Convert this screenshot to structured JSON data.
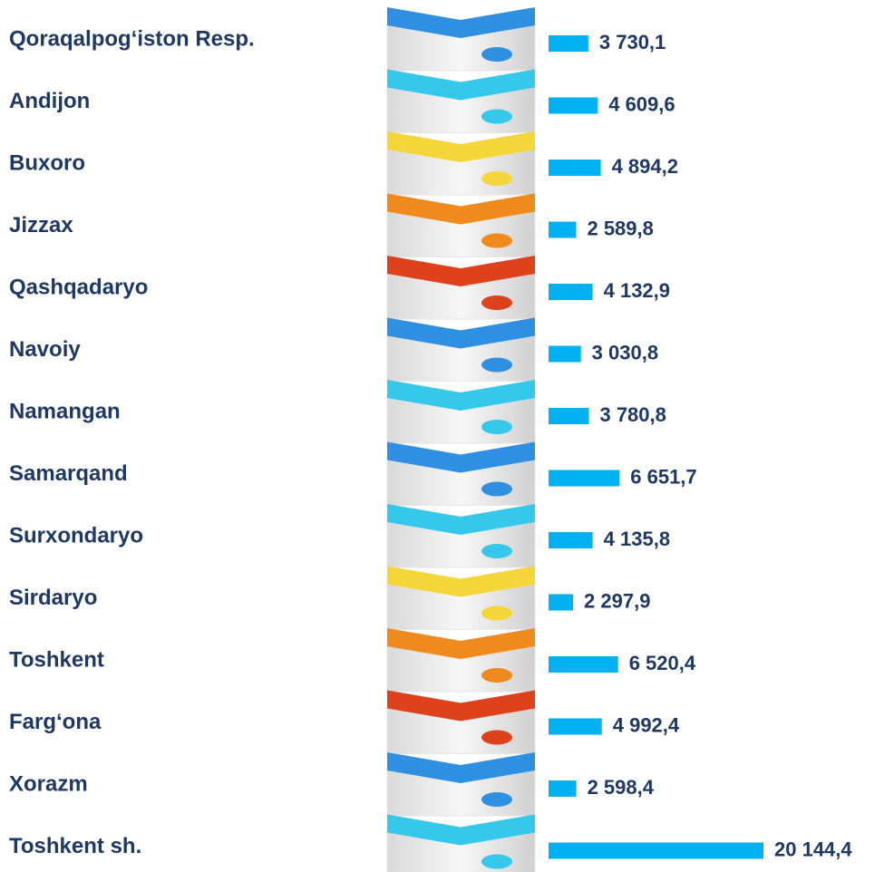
{
  "chart_data": {
    "type": "bar",
    "orientation": "horizontal",
    "categories": [
      "Qoraqalpog‘iston Resp.",
      "Andijon",
      "Buxoro",
      "Jizzax",
      "Qashqadaryo",
      "Navoiy",
      "Namangan",
      "Samarqand",
      "Surxondaryo",
      "Sirdaryo",
      "Toshkent",
      "Farg‘ona",
      "Xorazm",
      "Toshkent sh."
    ],
    "values": [
      3730.1,
      4609.6,
      4894.2,
      2589.8,
      4132.9,
      3030.8,
      3780.8,
      6651.7,
      4135.8,
      2297.9,
      6520.4,
      4992.4,
      2598.4,
      20144.4
    ],
    "value_labels": [
      "3 730,1",
      "4 609,6",
      "4 894,2",
      "2 589,8",
      "4 132,9",
      "3 030,8",
      "3 780,8",
      "6 651,7",
      "4 135,8",
      "2 297,9",
      "6 520,4",
      "4 992,4",
      "2 598,4",
      "20 144,4"
    ],
    "color": "#00b0f0"
  }
}
